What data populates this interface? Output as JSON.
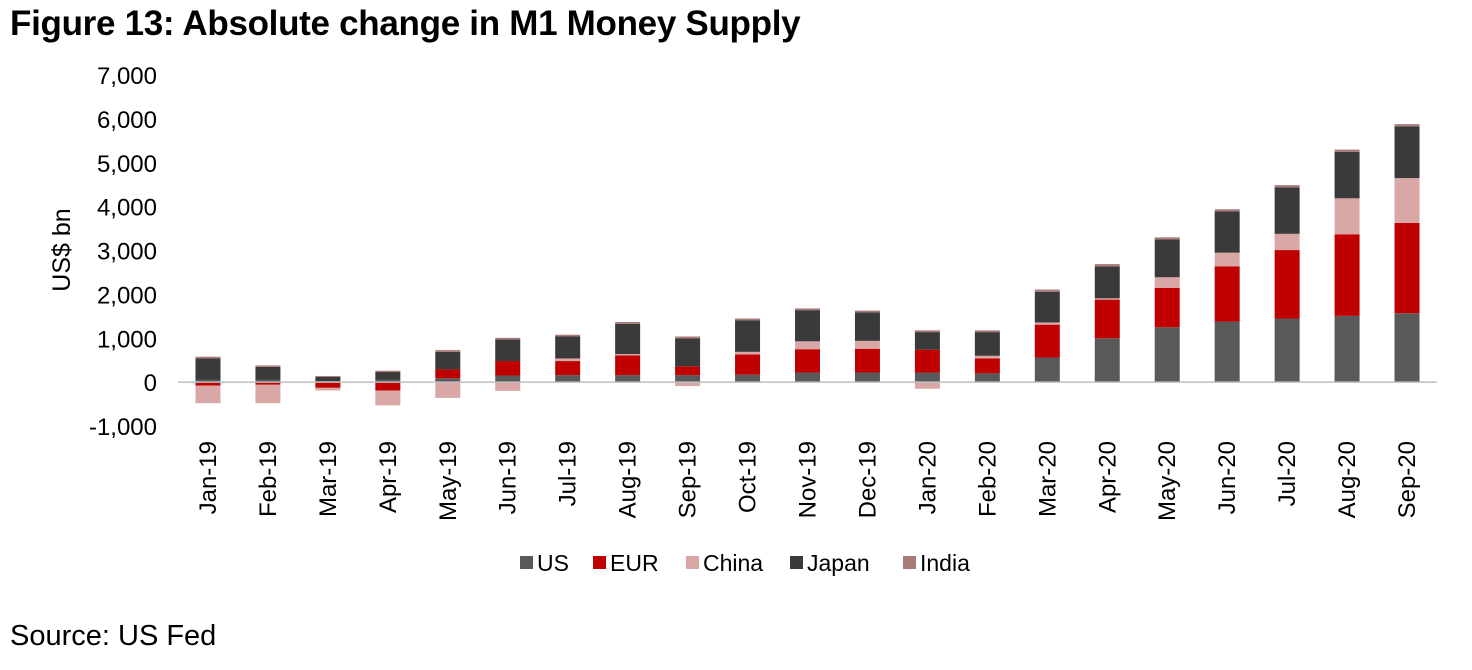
{
  "figure_title": "Figure 13: Absolute change in M1 Money Supply",
  "source": "Source: US Fed",
  "colors": {
    "US": "#595959",
    "EUR": "#c00000",
    "China": "#d9a8a6",
    "Japan": "#3a3a3a",
    "India": "#a87b79"
  },
  "chart_data": {
    "type": "bar",
    "stacked": true,
    "title": "Figure 13: Absolute change in M1 Money Supply",
    "xlabel": "",
    "ylabel": "US$ bn",
    "ylim": [
      -1000,
      7000
    ],
    "yticks": [
      -1000,
      0,
      1000,
      2000,
      3000,
      4000,
      5000,
      6000,
      7000
    ],
    "ytick_labels": [
      "-1,000",
      "0",
      "1,000",
      "2,000",
      "3,000",
      "4,000",
      "5,000",
      "6,000",
      "7,000"
    ],
    "grid": false,
    "legend_position": "bottom",
    "categories": [
      "Jan-19",
      "Feb-19",
      "Mar-19",
      "Apr-19",
      "May-19",
      "Jun-19",
      "Jul-19",
      "Aug-19",
      "Sep-19",
      "Oct-19",
      "Nov-19",
      "Dec-19",
      "Jan-20",
      "Feb-20",
      "Mar-20",
      "Apr-20",
      "May-20",
      "Jun-20",
      "Jul-20",
      "Aug-20",
      "Sep-20"
    ],
    "series": [
      {
        "name": "US",
        "values": [
          50,
          50,
          20,
          60,
          90,
          150,
          160,
          160,
          160,
          170,
          220,
          220,
          220,
          200,
          560,
          1000,
          1250,
          1380,
          1450,
          1510,
          1570
        ]
      },
      {
        "name": "EUR",
        "values": [
          -80,
          -60,
          -130,
          -190,
          200,
          330,
          320,
          450,
          200,
          460,
          530,
          540,
          520,
          340,
          750,
          880,
          900,
          1260,
          1560,
          1860,
          2060
        ]
      },
      {
        "name": "China",
        "values": [
          -400,
          -420,
          -60,
          -340,
          -360,
          -200,
          60,
          30,
          -90,
          60,
          180,
          180,
          -150,
          60,
          50,
          30,
          240,
          310,
          370,
          820,
          1020
        ]
      },
      {
        "name": "Japan",
        "values": [
          490,
          300,
          100,
          170,
          400,
          490,
          500,
          690,
          640,
          720,
          710,
          650,
          400,
          540,
          700,
          730,
          860,
          940,
          1060,
          1060,
          1180
        ]
      },
      {
        "name": "India",
        "values": [
          40,
          30,
          20,
          30,
          40,
          40,
          40,
          40,
          40,
          40,
          40,
          40,
          40,
          40,
          50,
          50,
          50,
          50,
          50,
          50,
          50
        ]
      }
    ]
  }
}
